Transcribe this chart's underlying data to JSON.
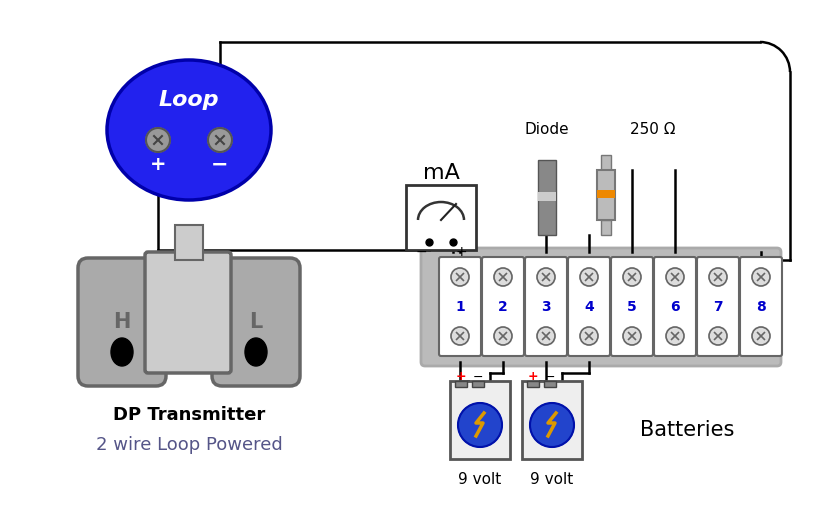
{
  "bg_color": "#ffffff",
  "dp_label": "DP Transmitter",
  "wire_loop_label": "2 wire Loop Powered",
  "batteries_label": "Batteries",
  "volt_label": "9 volt",
  "ma_label": "mA",
  "diode_label": "Diode",
  "resistor_label": "250 Ω",
  "wire_color": "#000000",
  "line_width": 1.8,
  "blue_fill": "#2222ee",
  "blue_border": "#0000aa",
  "gray_dark": "#666666",
  "gray_mid": "#999999",
  "gray_light": "#cccccc",
  "gray_body": "#aaaaaa",
  "terminal_num_color": "#0000cc",
  "battery_circle": "#2244cc",
  "bolt_color": "#dd9900",
  "orange_band": "#ee8800"
}
